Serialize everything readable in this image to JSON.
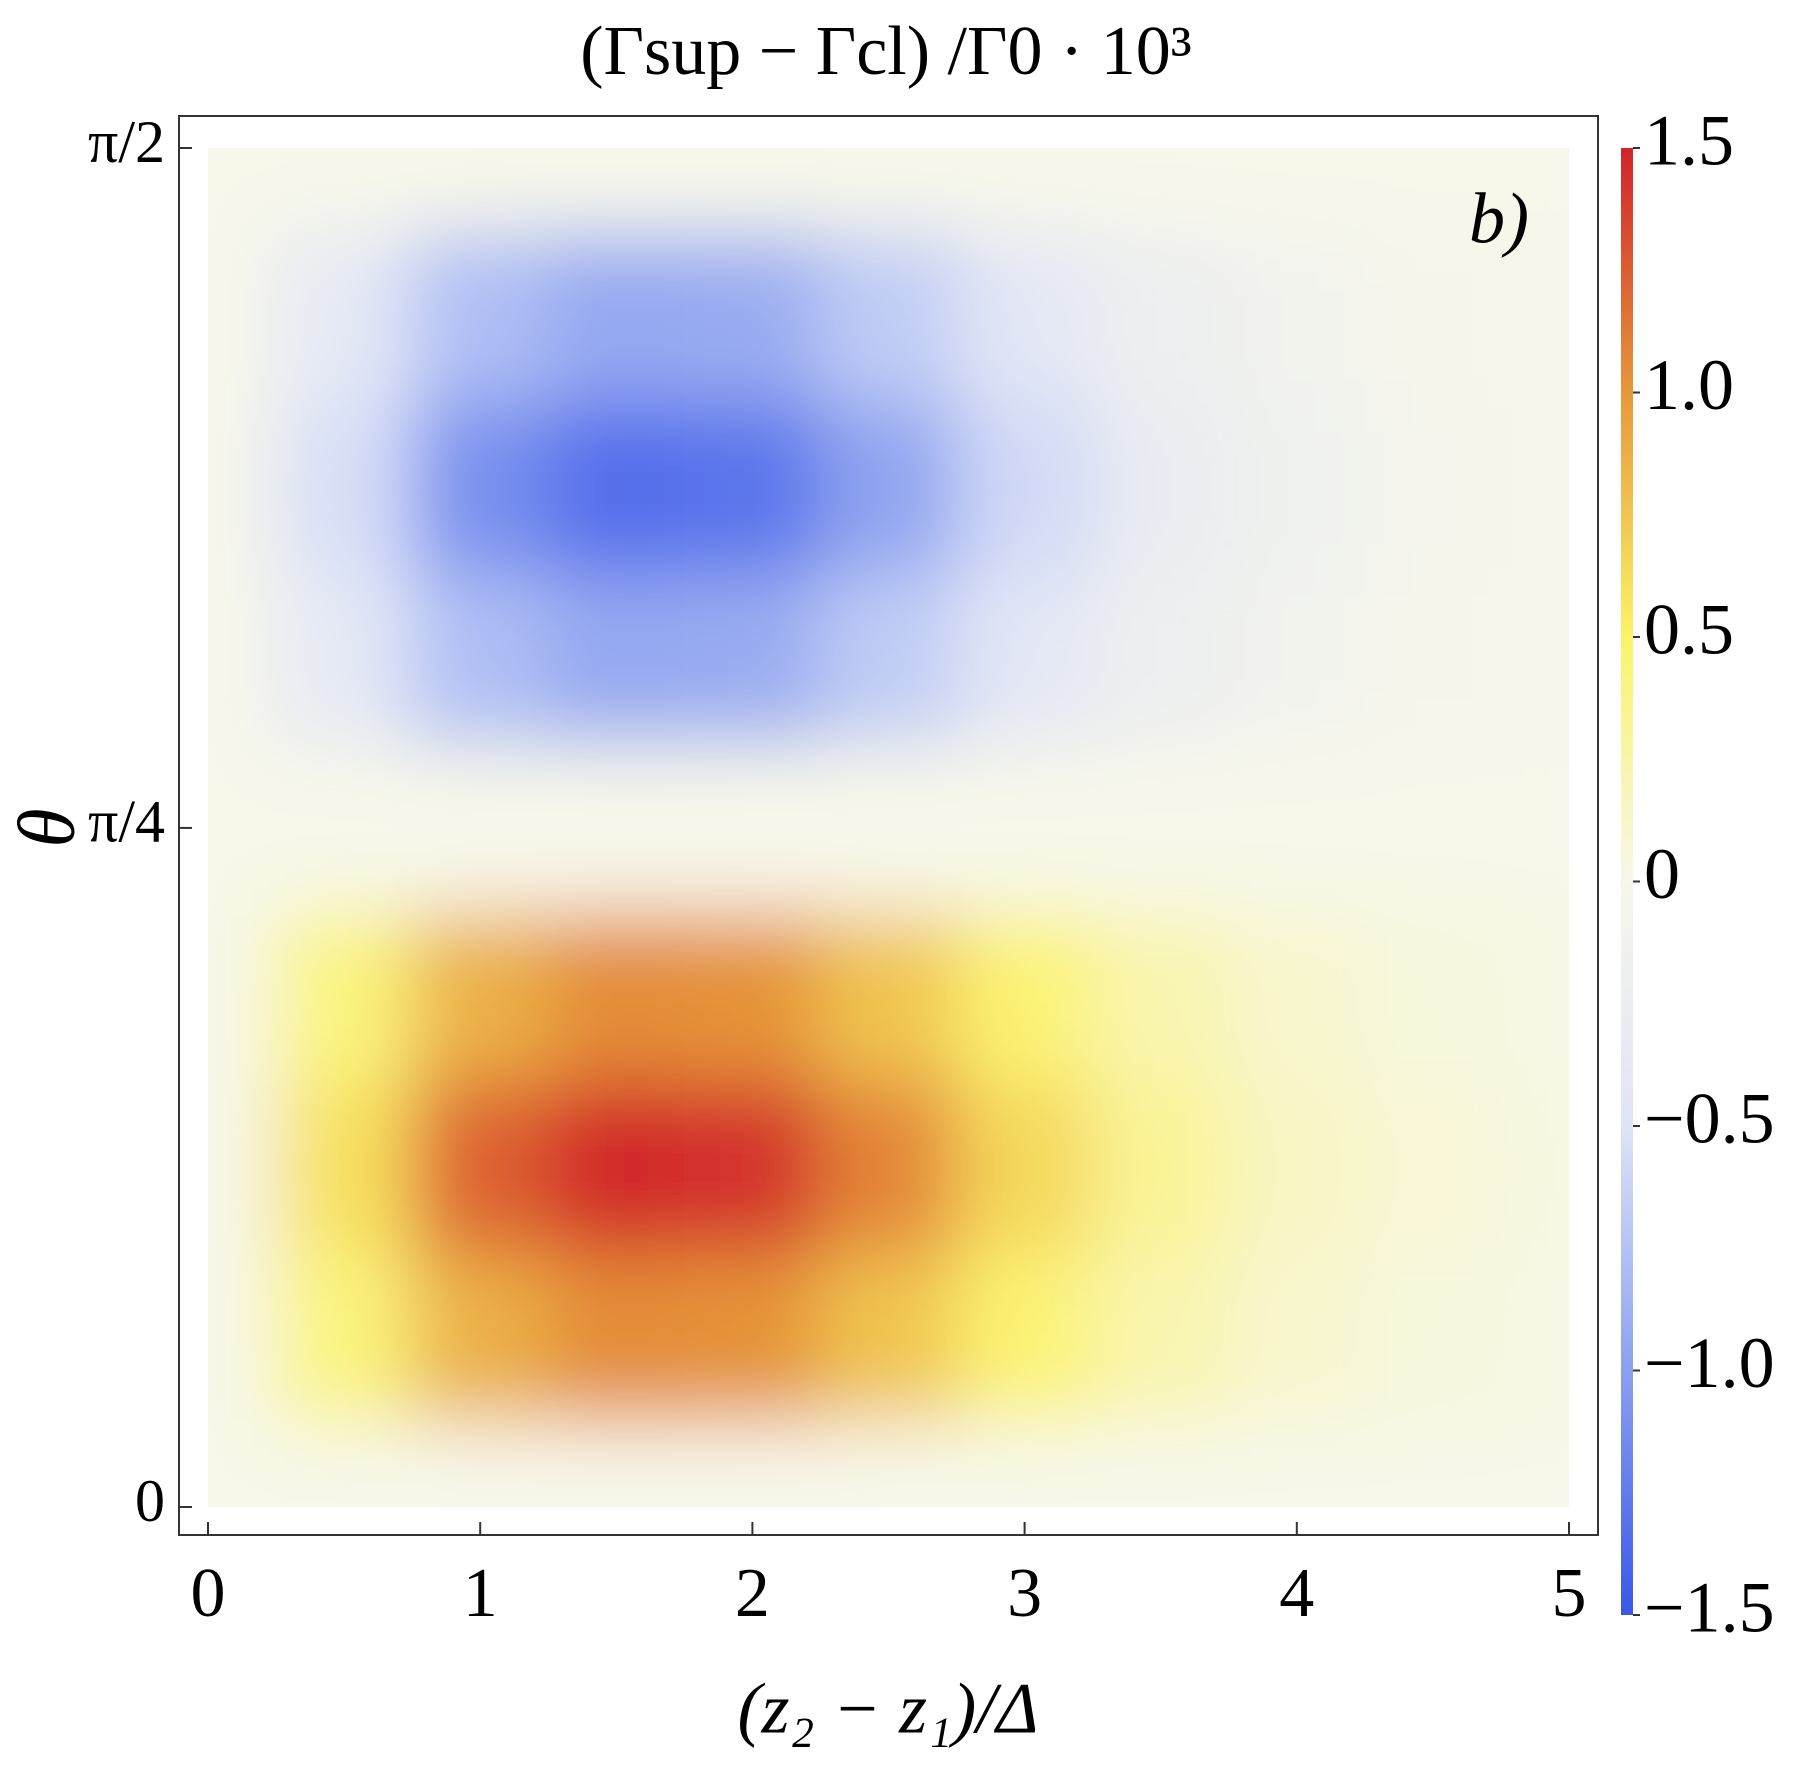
{
  "chart_data": {
    "type": "heatmap",
    "title": "(Γsup − Γcl) /Γ0 · 10³",
    "x_label": "(z₂ − z₁)/Δ",
    "y_label": "θ",
    "annotation": "b)",
    "x": [
      0,
      0.5,
      1,
      1.5,
      2,
      2.5,
      3,
      3.5,
      4,
      4.5,
      5
    ],
    "y": [
      0,
      0.196,
      0.393,
      0.589,
      0.785,
      0.982,
      1.178,
      1.374,
      1.571
    ],
    "z": [
      [
        0,
        0,
        0,
        0,
        0,
        0,
        0,
        0,
        0,
        0,
        0
      ],
      [
        0,
        0.42,
        0.87,
        1.05,
        1.02,
        0.76,
        0.46,
        0.23,
        0.11,
        0.05,
        0.02
      ],
      [
        0,
        0.6,
        1.23,
        1.49,
        1.44,
        1.08,
        0.65,
        0.33,
        0.15,
        0.08,
        0.03
      ],
      [
        0,
        0.42,
        0.87,
        1.05,
        1.02,
        0.76,
        0.46,
        0.23,
        0.11,
        0.05,
        0.02
      ],
      [
        0,
        0,
        0,
        0,
        0,
        0,
        0,
        0,
        0,
        0,
        0
      ],
      [
        0,
        -0.38,
        -0.78,
        -0.94,
        -0.91,
        -0.68,
        -0.41,
        -0.21,
        -0.1,
        -0.05,
        -0.02
      ],
      [
        0,
        -0.54,
        -1.11,
        -1.34,
        -1.3,
        -0.97,
        -0.58,
        -0.3,
        -0.14,
        -0.07,
        -0.03
      ],
      [
        0,
        -0.38,
        -0.78,
        -0.94,
        -0.91,
        -0.68,
        -0.41,
        -0.21,
        -0.1,
        -0.05,
        -0.02
      ],
      [
        0,
        0,
        0,
        0,
        0,
        0,
        0,
        0,
        0,
        0,
        0
      ]
    ],
    "xlim": [
      0,
      5
    ],
    "xticks": [
      0,
      1,
      2,
      3,
      4,
      5
    ],
    "ylim": [
      0,
      1.571
    ],
    "yticks": [
      0,
      {
        "value": 0.785,
        "label": "π/4"
      },
      {
        "value": 1.571,
        "label": "π/2"
      }
    ],
    "zlim": [
      -1.5,
      1.5
    ],
    "zticks": [
      1.5,
      {
        "value": 1,
        "label": "1.0"
      },
      0.5,
      0,
      {
        "value": -0.5,
        "label": "−0.5"
      },
      {
        "value": -1,
        "label": "−1.0"
      },
      {
        "value": -1.5,
        "label": "−1.5"
      }
    ],
    "colormap": [
      "#3a57e8",
      "#8aa0f0",
      "#dfe4f8",
      "#f7f7ea",
      "#fbf36a",
      "#e6983a",
      "#d2232b"
    ]
  }
}
